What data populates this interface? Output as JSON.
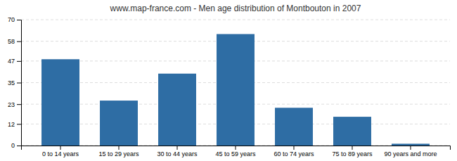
{
  "chart_data": {
    "type": "bar",
    "title": "www.map-france.com - Men age distribution of Montbouton in 2007",
    "categories": [
      "0 to 14 years",
      "15 to 29 years",
      "30 to 44 years",
      "45 to 59 years",
      "60 to 74 years",
      "75 to 89 years",
      "90 years and more"
    ],
    "values": [
      48,
      25,
      40,
      62,
      21,
      16,
      1
    ],
    "color": "#2E6DA4",
    "ylim": [
      0,
      70
    ],
    "yticks": [
      0,
      12,
      23,
      35,
      47,
      58,
      70
    ],
    "grid": true
  }
}
